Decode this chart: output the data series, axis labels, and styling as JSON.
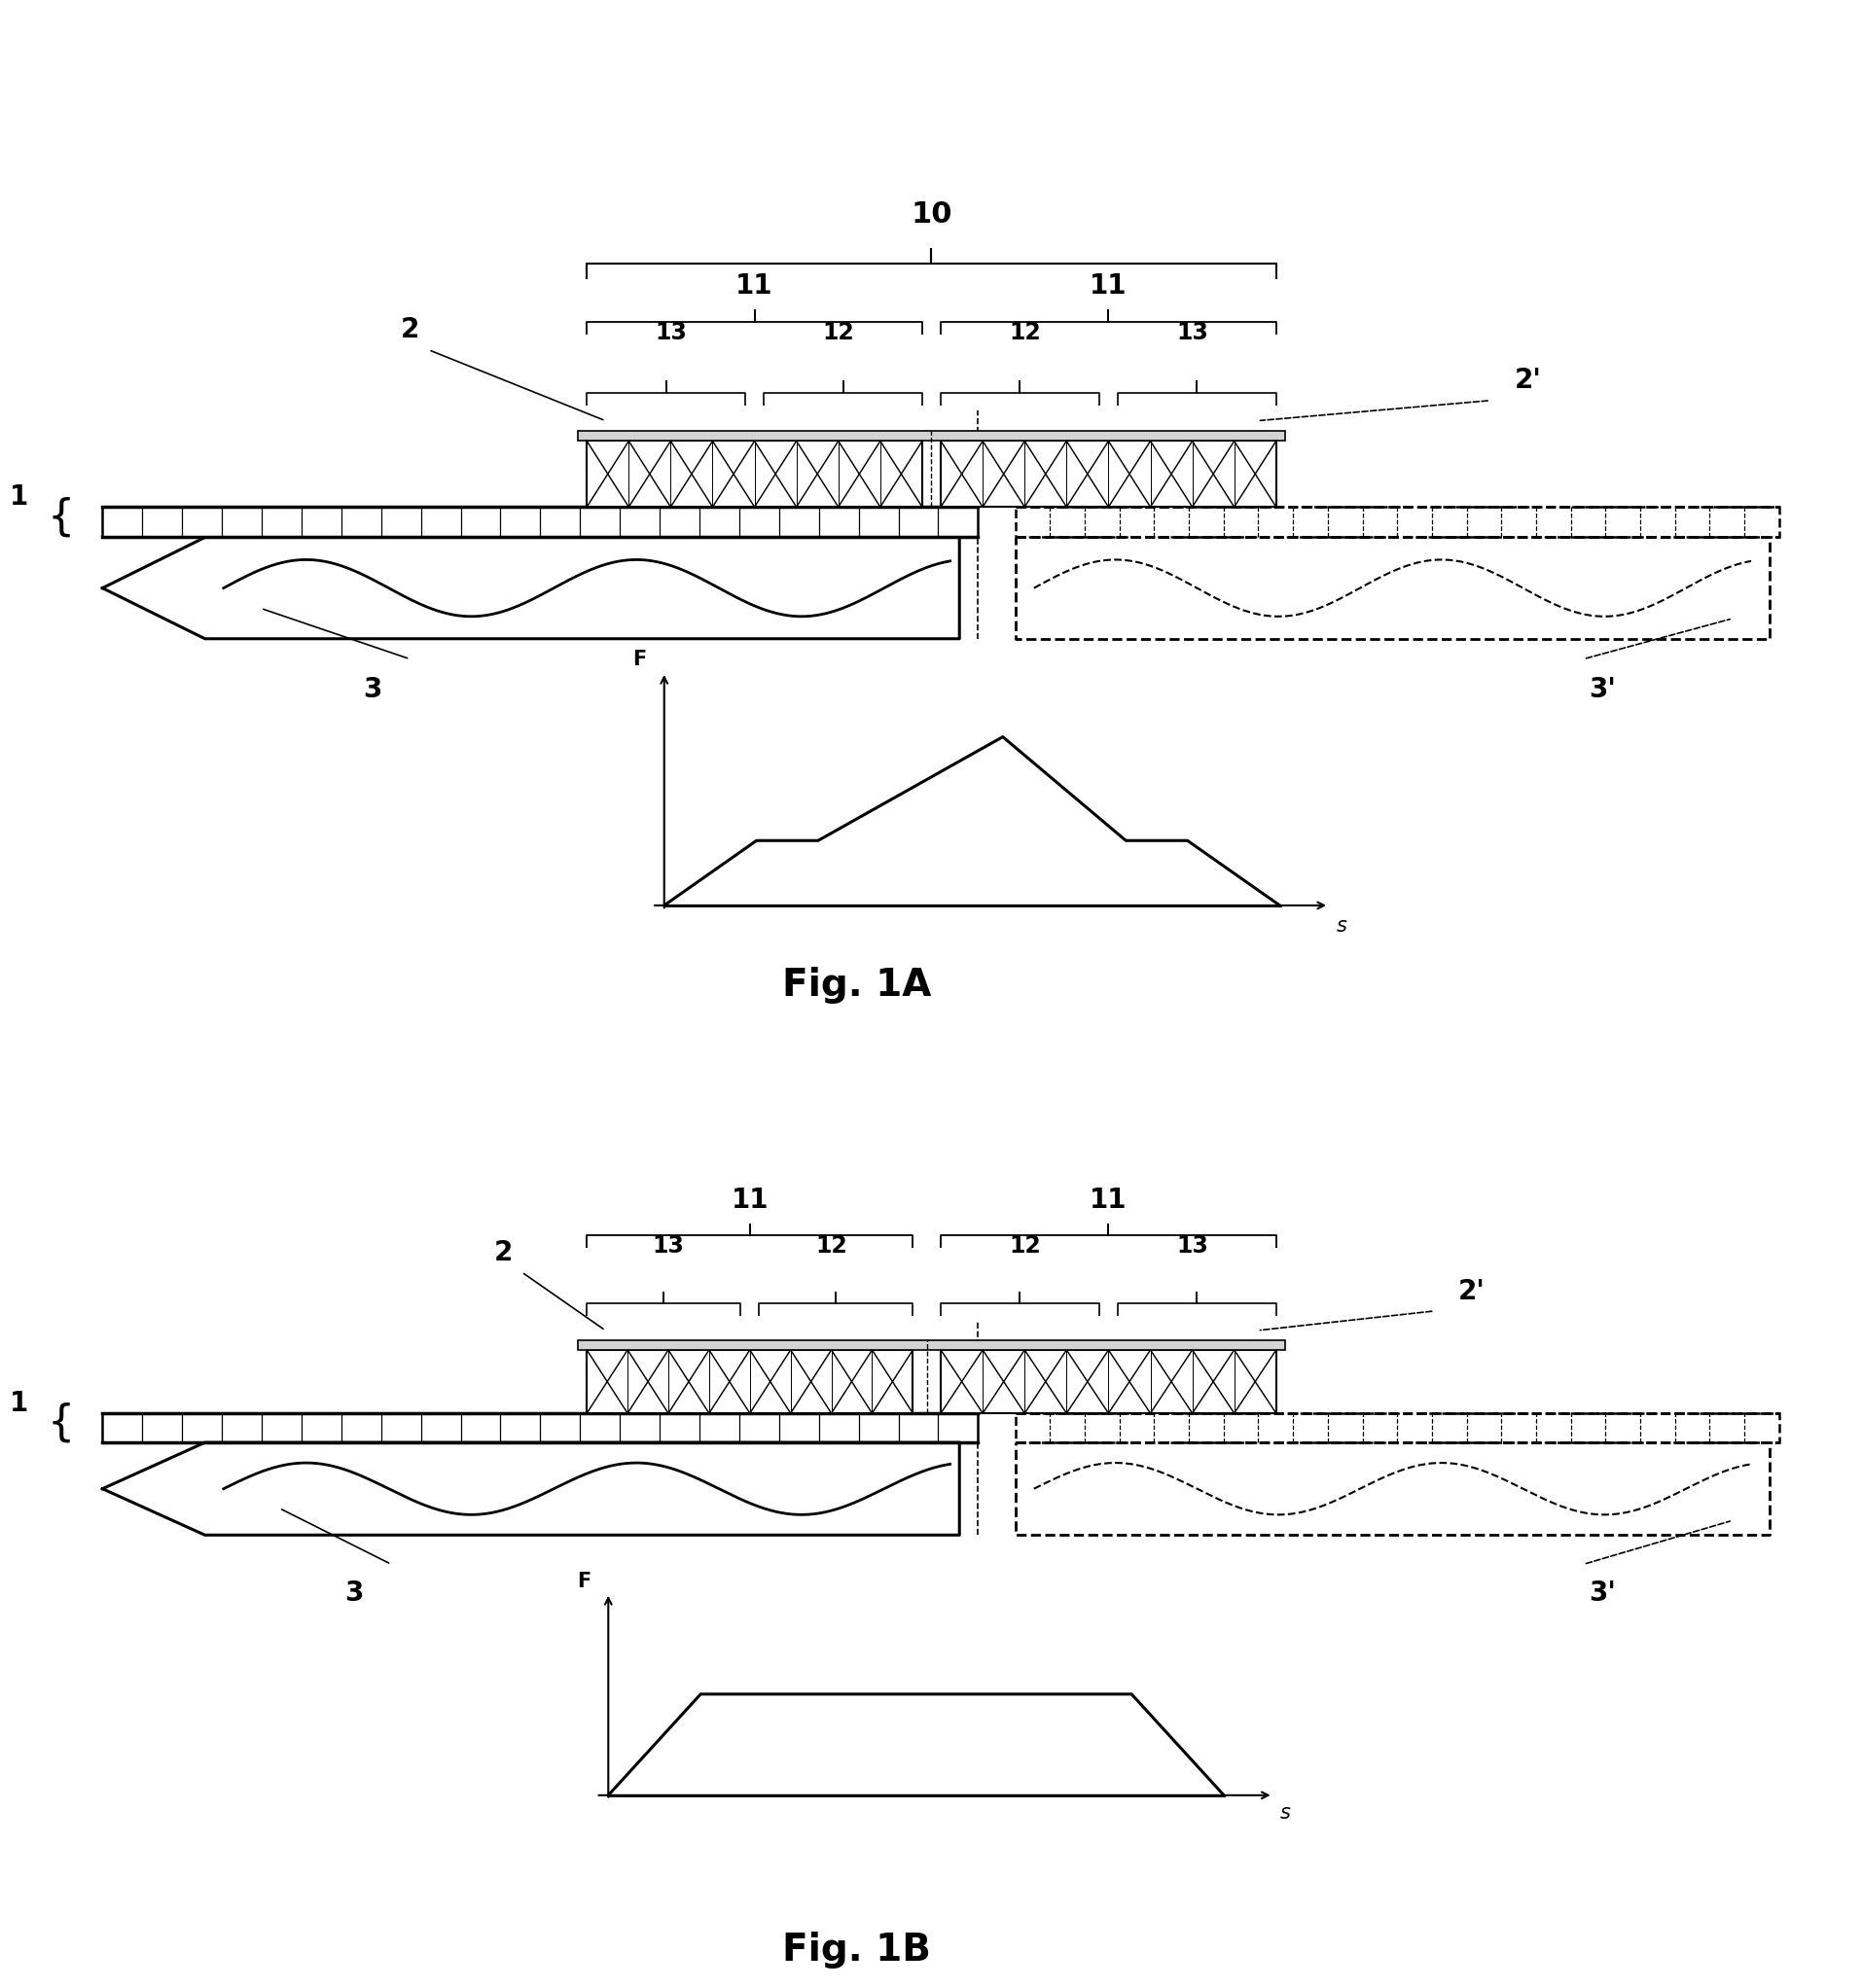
{
  "bg_color": "#ffffff",
  "line_color": "#000000",
  "fig_width": 19.15,
  "fig_height": 20.44,
  "lw_main": 2.0,
  "lw_thick": 2.5,
  "lw_thin": 1.2,
  "label_fs": 20,
  "brace_fs": 20,
  "title_fs": 28,
  "fig1a_title": "Fig. 1A",
  "fig1b_title": "Fig. 1B",
  "fig1a_graph_shape": [
    0,
    1.5,
    2.5,
    5.5,
    7.5,
    8.5,
    10
  ],
  "fig1a_graph_vals": [
    0,
    2.5,
    2.5,
    6.5,
    2.5,
    2.5,
    0
  ],
  "fig1b_graph_shape": [
    0,
    1.5,
    8.5,
    10
  ],
  "fig1b_graph_vals": [
    0,
    4.5,
    4.5,
    0
  ]
}
